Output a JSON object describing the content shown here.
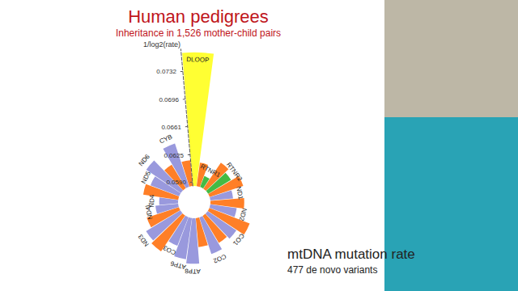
{
  "chart_data": {
    "type": "bar",
    "title": "Human pedigrees",
    "subtitle": "Inheritance in 1,526 mother-child pairs",
    "y_label": "1/log2(rate)",
    "annotations": [
      "mtDNA mutation rate",
      "477 de novo variants"
    ],
    "categories": [
      "DLOOP",
      null,
      "RTNR1",
      null,
      "RTNR2",
      null,
      "ND1",
      null,
      "ND2",
      null,
      "CO1",
      null,
      "CO2",
      null,
      "ATP8",
      "ATP6",
      "CO3",
      null,
      "ND3",
      null,
      "ND4L",
      "ND4",
      null,
      "ND5",
      "ND6",
      null,
      "CYB",
      null
    ],
    "values": [
      0.0755,
      0.0615,
      0.06,
      0.0625,
      0.0619,
      0.063,
      0.0614,
      0.0628,
      0.0619,
      0.064,
      0.0629,
      0.0625,
      0.0634,
      0.0622,
      0.0643,
      0.0638,
      0.0624,
      0.064,
      0.0636,
      0.0628,
      0.0614,
      0.0609,
      0.063,
      0.0624,
      0.0638,
      0.062,
      0.0643,
      0.0618
    ],
    "colors": [
      "#ffff33",
      "#ff7f27",
      "#44bb44",
      "#ff7f27",
      "#44bb44",
      "#ff7f27",
      "#9999dd",
      "#ff7f27",
      "#9999dd",
      "#ff7f27",
      "#9999dd",
      "#ff7f27",
      "#9999dd",
      "#ff7f27",
      "#9999dd",
      "#9999dd",
      "#9999dd",
      "#ff7f27",
      "#9999dd",
      "#ff7f27",
      "#9999dd",
      "#9999dd",
      "#ff7f27",
      "#9999dd",
      "#9999dd",
      "#ff7f27",
      "#9999dd",
      "#ff7f27"
    ],
    "ylim": [
      0.0585,
      0.076
    ],
    "yticks": [
      {
        "value": 0.059,
        "label": "0.0590"
      },
      0.0625,
      0.0661,
      0.0696,
      0.0732
    ],
    "grid": false
  }
}
